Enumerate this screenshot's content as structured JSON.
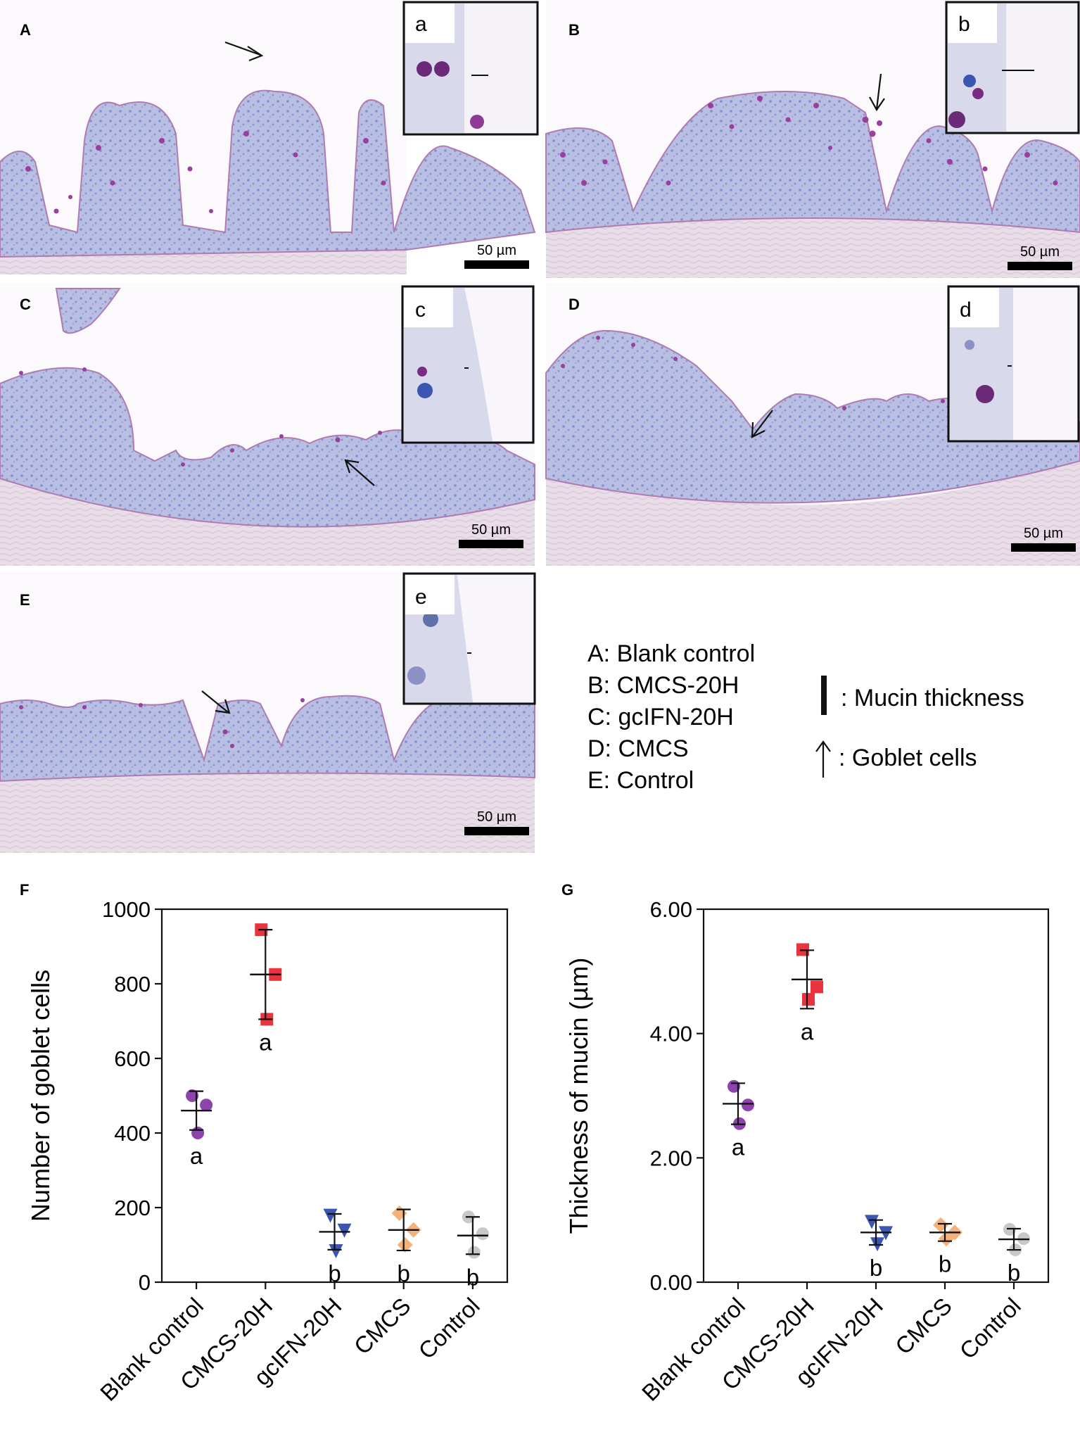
{
  "panels": [
    {
      "id": "A",
      "inset": "a",
      "scale_bar": "50 µm"
    },
    {
      "id": "B",
      "inset": "b",
      "scale_bar": "50 µm"
    },
    {
      "id": "C",
      "inset": "c",
      "scale_bar": "50 µm"
    },
    {
      "id": "D",
      "inset": "d",
      "scale_bar": "50 µm"
    },
    {
      "id": "E",
      "inset": "e",
      "scale_bar": "50 µm"
    }
  ],
  "legend": {
    "groups": [
      "A: Blank control",
      "B: CMCS-20H",
      "C: gcIFN-20H",
      "D: CMCS",
      "E: Control"
    ],
    "mucin_symbol_label": ": Mucin thickness",
    "goblet_symbol_label": ": Goblet cells"
  },
  "colors": {
    "Blank control": "#8e44ad",
    "CMCS-20H": "#e8343c",
    "gcIFN-20H": "#3a56b0",
    "CMCS": "#f4b27a",
    "Control": "#c8c8c8"
  },
  "chart_data": [
    {
      "panel": "F",
      "type": "scatter",
      "categories": [
        "Blank control",
        "CMCS-20H",
        "gcIFN-20H",
        "CMCS",
        "Control"
      ],
      "ylabel": "Number of goblet cells",
      "ylim": [
        0,
        1000
      ],
      "yticks": [
        "0",
        "200",
        "400",
        "600",
        "800",
        "1000"
      ],
      "series": [
        {
          "category": "Blank control",
          "marker": "circle",
          "points": [
            500,
            475,
            400
          ],
          "mean": 460,
          "sd": 52,
          "letter": "a"
        },
        {
          "category": "CMCS-20H",
          "marker": "square",
          "points": [
            945,
            825,
            705
          ],
          "mean": 825,
          "sd": 120,
          "letter": "a"
        },
        {
          "category": "gcIFN-20H",
          "marker": "triangle-down",
          "points": [
            180,
            140,
            85
          ],
          "mean": 135,
          "sd": 48,
          "letter": "b"
        },
        {
          "category": "CMCS",
          "marker": "diamond",
          "points": [
            185,
            140,
            100
          ],
          "mean": 140,
          "sd": 55,
          "letter": "b"
        },
        {
          "category": "Control",
          "marker": "circle",
          "points": [
            175,
            130,
            80
          ],
          "mean": 125,
          "sd": 50,
          "letter": "b"
        }
      ]
    },
    {
      "panel": "G",
      "type": "scatter",
      "categories": [
        "Blank control",
        "CMCS-20H",
        "gcIFN-20H",
        "CMCS",
        "Control"
      ],
      "ylabel": "Thickness of mucin (µm)",
      "ylim": [
        0,
        6
      ],
      "yticks": [
        "0.00",
        "2.00",
        "4.00",
        "6.00"
      ],
      "series": [
        {
          "category": "Blank control",
          "marker": "circle",
          "points": [
            3.15,
            2.85,
            2.55
          ],
          "mean": 2.87,
          "sd": 0.33,
          "letter": "a"
        },
        {
          "category": "CMCS-20H",
          "marker": "square",
          "points": [
            5.35,
            4.75,
            4.55
          ],
          "mean": 4.87,
          "sd": 0.47,
          "letter": "a"
        },
        {
          "category": "gcIFN-20H",
          "marker": "triangle-down",
          "points": [
            0.98,
            0.8,
            0.62
          ],
          "mean": 0.8,
          "sd": 0.2,
          "letter": "b"
        },
        {
          "category": "CMCS",
          "marker": "diamond",
          "points": [
            0.92,
            0.8,
            0.7
          ],
          "mean": 0.8,
          "sd": 0.14,
          "letter": "b"
        },
        {
          "category": "Control",
          "marker": "circle",
          "points": [
            0.85,
            0.7,
            0.52
          ],
          "mean": 0.69,
          "sd": 0.17,
          "letter": "b"
        }
      ]
    }
  ]
}
